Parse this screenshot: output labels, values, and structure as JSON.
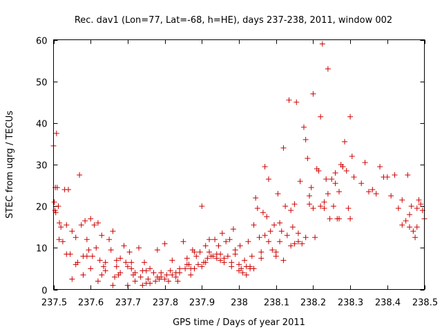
{
  "chart_data": {
    "type": "scatter",
    "title": "Rec. dav1 (Lon=77, Lat=-68, h=HE), days 237-238, 2011, window 002",
    "xlabel": "GPS time / Days of year 2011",
    "ylabel": "STEC from uqrg / TECUs",
    "xlim": [
      237.5,
      238.5
    ],
    "ylim": [
      0,
      60
    ],
    "xticks": [
      237.5,
      237.6,
      237.7,
      237.8,
      237.9,
      238.0,
      238.1,
      238.2,
      238.3,
      238.4,
      238.5
    ],
    "xtick_labels": [
      "237.5",
      "237.6",
      "237.7",
      "237.8",
      "237.9",
      "238",
      "238.1",
      "238.2",
      "238.3",
      "238.4",
      "238.5"
    ],
    "yticks": [
      0,
      10,
      20,
      30,
      40,
      50,
      60
    ],
    "ytick_labels": [
      "0",
      "10",
      "20",
      "30",
      "40",
      "50",
      "60"
    ],
    "marker": "+",
    "color": "#cc0000",
    "grid": false,
    "x": [
      237.5,
      237.502,
      237.504,
      237.506,
      237.508,
      237.51,
      237.513,
      237.516,
      237.52,
      237.525,
      237.53,
      237.535,
      237.54,
      237.545,
      237.55,
      237.56,
      237.565,
      237.57,
      237.575,
      237.58,
      237.585,
      237.59,
      237.595,
      237.6,
      237.605,
      237.61,
      237.615,
      237.62,
      237.625,
      237.63,
      237.635,
      237.64,
      237.65,
      237.655,
      237.66,
      237.665,
      237.67,
      237.675,
      237.68,
      237.69,
      237.695,
      237.7,
      237.705,
      237.71,
      237.715,
      237.72,
      237.73,
      237.735,
      237.74,
      237.745,
      237.75,
      237.755,
      237.76,
      237.77,
      237.775,
      237.78,
      237.785,
      237.79,
      237.8,
      237.805,
      237.81,
      237.815,
      237.82,
      237.83,
      237.835,
      237.84,
      237.85,
      237.855,
      237.86,
      237.865,
      237.87,
      237.875,
      237.88,
      237.885,
      237.89,
      237.895,
      237.9,
      237.905,
      237.91,
      237.915,
      237.92,
      237.925,
      237.93,
      237.935,
      237.94,
      237.945,
      237.95,
      237.955,
      237.96,
      237.965,
      237.97,
      237.975,
      237.98,
      237.985,
      237.99,
      238.0,
      238.003,
      238.006,
      238.01,
      238.015,
      238.02,
      238.025,
      238.03,
      238.035,
      238.04,
      238.045,
      238.05,
      238.055,
      238.06,
      238.065,
      238.07,
      238.075,
      238.08,
      238.085,
      238.09,
      238.095,
      238.1,
      238.105,
      238.11,
      238.115,
      238.12,
      238.125,
      238.13,
      238.135,
      238.14,
      238.145,
      238.15,
      238.155,
      238.16,
      238.165,
      238.17,
      238.175,
      238.18,
      238.185,
      238.19,
      238.195,
      238.2,
      238.205,
      238.21,
      238.215,
      238.22,
      238.225,
      238.23,
      238.235,
      238.24,
      238.245,
      238.25,
      238.255,
      238.26,
      238.265,
      238.27,
      238.275,
      238.28,
      238.285,
      238.29,
      238.295,
      238.3,
      238.305,
      238.31,
      238.33,
      238.34,
      238.35,
      238.36,
      238.37,
      238.38,
      238.39,
      238.4,
      238.41,
      238.42,
      238.43,
      238.44,
      238.45,
      238.455,
      238.46,
      238.465,
      238.47,
      238.475,
      238.48,
      238.485,
      238.49,
      238.495,
      238.5,
      237.505,
      237.515,
      237.535,
      237.56,
      237.58,
      237.6,
      237.62,
      237.64,
      237.66,
      237.68,
      237.7,
      237.72,
      237.74,
      237.76,
      237.78,
      237.8,
      237.82,
      237.84,
      237.86,
      237.88,
      237.9,
      237.92,
      237.94,
      237.96,
      237.98,
      238.0,
      238.02,
      238.04,
      238.06,
      238.08,
      238.1,
      238.12,
      238.14,
      238.16,
      238.18,
      238.2,
      238.22,
      238.24,
      238.26,
      238.28,
      238.3,
      237.55,
      237.59,
      237.63,
      237.67,
      237.71,
      237.75,
      237.79,
      237.83,
      237.87,
      237.91,
      237.95,
      237.99,
      238.03,
      238.07,
      238.11,
      238.15,
      238.19,
      238.23,
      238.27,
      238.44,
      238.46,
      238.48
    ],
    "y": [
      34.5,
      21.0,
      19.0,
      18.5,
      37.5,
      24.5,
      20.0,
      16.0,
      15.0,
      11.5,
      24.0,
      15.5,
      24.0,
      8.5,
      14.0,
      12.5,
      6.5,
      27.5,
      15.5,
      8.0,
      16.5,
      12.0,
      9.5,
      17.0,
      8.0,
      15.5,
      10.0,
      16.0,
      7.0,
      13.0,
      5.5,
      6.5,
      12.0,
      9.5,
      14.0,
      3.0,
      7.0,
      3.5,
      4.0,
      10.5,
      6.5,
      5.5,
      9.0,
      6.5,
      3.5,
      2.0,
      10.0,
      3.0,
      4.5,
      6.5,
      1.5,
      2.5,
      5.0,
      4.0,
      2.0,
      9.5,
      2.5,
      4.0,
      11.0,
      3.5,
      2.0,
      4.5,
      7.0,
      4.0,
      2.0,
      4.0,
      11.5,
      5.0,
      7.5,
      6.0,
      3.5,
      9.5,
      5.0,
      8.0,
      6.0,
      9.0,
      20.0,
      6.5,
      10.5,
      7.5,
      12.0,
      8.0,
      8.0,
      12.0,
      7.5,
      10.5,
      7.0,
      13.5,
      6.5,
      11.5,
      8.0,
      12.0,
      5.5,
      14.5,
      9.5,
      6.0,
      10.5,
      5.0,
      4.0,
      7.0,
      3.5,
      11.5,
      5.5,
      8.0,
      15.5,
      22.0,
      19.5,
      12.5,
      9.0,
      18.5,
      29.5,
      17.5,
      26.5,
      14.0,
      9.5,
      15.5,
      8.0,
      23.0,
      11.5,
      14.0,
      34.0,
      20.0,
      13.0,
      45.5,
      19.0,
      15.0,
      20.5,
      45.0,
      13.5,
      26.0,
      11.0,
      39.0,
      36.0,
      31.5,
      20.5,
      24.5,
      47.0,
      12.5,
      29.0,
      28.5,
      41.5,
      59.0,
      21.0,
      26.5,
      53.0,
      17.0,
      26.5,
      20.0,
      28.0,
      17.0,
      23.5,
      30.0,
      29.5,
      35.5,
      28.5,
      19.5,
      41.5,
      32.0,
      27.0,
      25.5,
      30.5,
      23.5,
      24.0,
      23.0,
      29.5,
      27.0,
      27.0,
      22.5,
      27.5,
      19.5,
      21.5,
      16.5,
      27.5,
      15.0,
      20.0,
      14.0,
      12.5,
      15.0,
      21.5,
      20.5,
      19.0,
      17.0,
      24.5,
      12.0,
      8.5,
      6.0,
      3.5,
      5.0,
      2.0,
      4.5,
      1.0,
      7.5,
      1.0,
      4.0,
      1.0,
      1.5,
      3.0,
      2.5,
      3.5,
      5.0,
      6.0,
      9.0,
      5.5,
      9.0,
      8.5,
      7.5,
      6.5,
      4.5,
      5.5,
      5.0,
      7.5,
      11.5,
      9.0,
      7.0,
      10.5,
      11.5,
      12.5,
      19.5,
      20.0,
      23.0,
      25.5,
      29.5,
      17.0,
      2.5,
      8.0,
      3.5,
      5.5,
      5.0,
      4.5,
      3.0,
      3.0,
      5.0,
      6.5,
      8.5,
      8.5,
      5.0,
      13.0,
      16.0,
      11.0,
      22.5,
      19.5,
      17.0,
      15.5,
      18.0,
      19.5
    ]
  }
}
